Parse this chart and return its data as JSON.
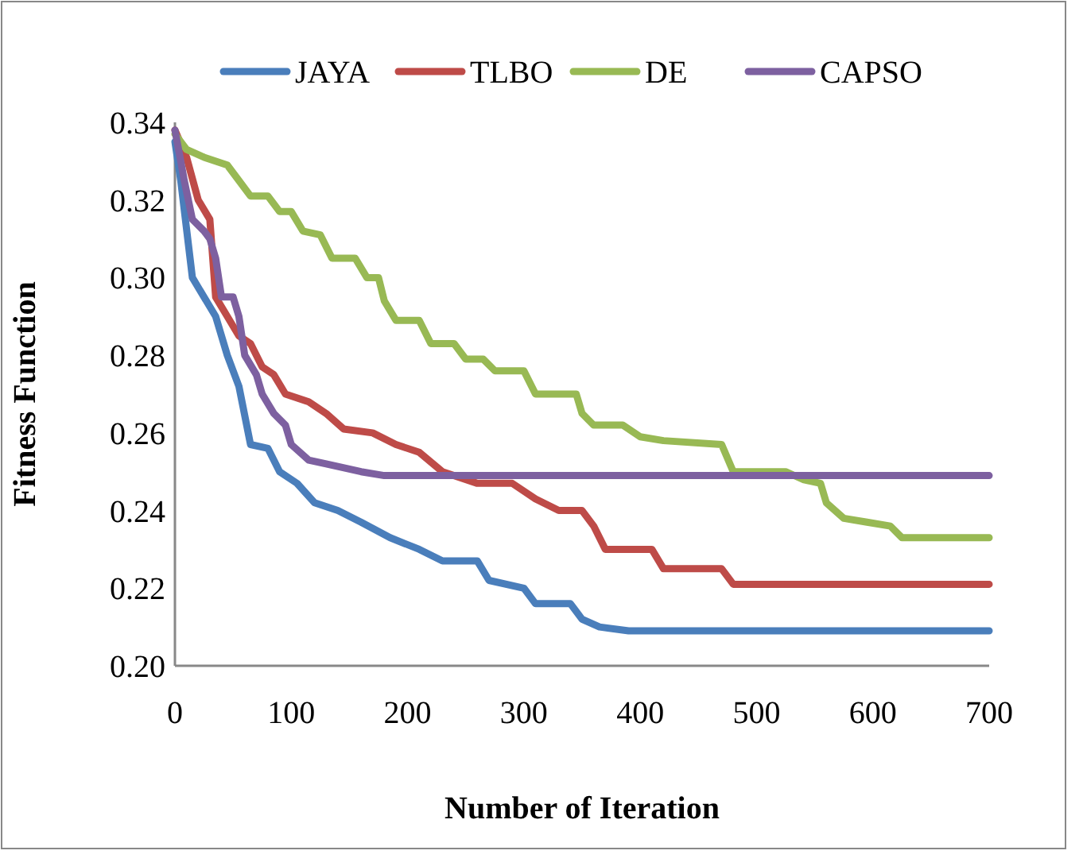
{
  "chart_data": {
    "type": "line",
    "xlabel": "Number of  Iteration",
    "ylabel": "Fitness Function",
    "xlim": [
      0,
      700
    ],
    "xticks": [
      0,
      100,
      200,
      300,
      400,
      500,
      600,
      700
    ],
    "ylim": [
      0.2,
      0.34
    ],
    "yticks": [
      {
        "value": 0.2,
        "label": "0.20"
      },
      {
        "value": 0.22,
        "label": "0.22"
      },
      {
        "value": 0.24,
        "label": "0.24"
      },
      {
        "value": 0.26,
        "label": "0.26"
      },
      {
        "value": 0.28,
        "label": "0.28"
      },
      {
        "value": 0.3,
        "label": "0.30"
      },
      {
        "value": 0.32,
        "label": "0.32"
      },
      {
        "value": 0.34,
        "label": "0.34"
      }
    ],
    "grid": false,
    "legend": "top",
    "marker": "none",
    "line_style": "solid",
    "series": [
      {
        "name": "JAYA",
        "color": "#4a7ebb",
        "x": [
          0,
          5,
          15,
          35,
          45,
          55,
          65,
          80,
          90,
          105,
          120,
          140,
          160,
          185,
          210,
          230,
          260,
          270,
          300,
          310,
          340,
          350,
          365,
          390,
          700
        ],
        "values": [
          0.335,
          0.325,
          0.3,
          0.29,
          0.28,
          0.272,
          0.257,
          0.256,
          0.25,
          0.247,
          0.242,
          0.24,
          0.237,
          0.233,
          0.23,
          0.227,
          0.227,
          0.222,
          0.22,
          0.216,
          0.216,
          0.212,
          0.21,
          0.209,
          0.209
        ]
      },
      {
        "name": "TLBO",
        "color": "#be4b48",
        "x": [
          0,
          10,
          20,
          30,
          35,
          45,
          55,
          65,
          75,
          85,
          95,
          115,
          130,
          145,
          170,
          190,
          210,
          230,
          260,
          290,
          310,
          330,
          350,
          360,
          370,
          410,
          420,
          470,
          480,
          700
        ],
        "values": [
          0.338,
          0.331,
          0.32,
          0.315,
          0.295,
          0.29,
          0.285,
          0.283,
          0.277,
          0.275,
          0.27,
          0.268,
          0.265,
          0.261,
          0.26,
          0.257,
          0.255,
          0.25,
          0.247,
          0.247,
          0.243,
          0.24,
          0.24,
          0.236,
          0.23,
          0.23,
          0.225,
          0.225,
          0.221,
          0.221
        ]
      },
      {
        "name": "DE",
        "color": "#98b954",
        "x": [
          0,
          10,
          25,
          45,
          55,
          65,
          80,
          90,
          100,
          110,
          125,
          135,
          155,
          165,
          175,
          180,
          190,
          210,
          220,
          240,
          250,
          265,
          275,
          300,
          310,
          345,
          350,
          360,
          385,
          400,
          420,
          470,
          480,
          525,
          540,
          555,
          560,
          575,
          595,
          615,
          625,
          700
        ],
        "values": [
          0.337,
          0.333,
          0.331,
          0.329,
          0.325,
          0.321,
          0.321,
          0.317,
          0.317,
          0.312,
          0.311,
          0.305,
          0.305,
          0.3,
          0.3,
          0.294,
          0.289,
          0.289,
          0.283,
          0.283,
          0.279,
          0.279,
          0.276,
          0.276,
          0.27,
          0.27,
          0.265,
          0.262,
          0.262,
          0.259,
          0.258,
          0.257,
          0.25,
          0.25,
          0.248,
          0.247,
          0.242,
          0.238,
          0.237,
          0.236,
          0.233,
          0.233
        ]
      },
      {
        "name": "CAPSO",
        "color": "#7d60a0",
        "x": [
          0,
          5,
          8,
          15,
          25,
          30,
          35,
          40,
          50,
          55,
          60,
          70,
          75,
          85,
          95,
          100,
          115,
          130,
          160,
          180,
          700
        ],
        "values": [
          0.338,
          0.33,
          0.325,
          0.315,
          0.312,
          0.31,
          0.305,
          0.295,
          0.295,
          0.29,
          0.28,
          0.275,
          0.27,
          0.265,
          0.262,
          0.257,
          0.253,
          0.252,
          0.25,
          0.249,
          0.249
        ]
      }
    ]
  }
}
